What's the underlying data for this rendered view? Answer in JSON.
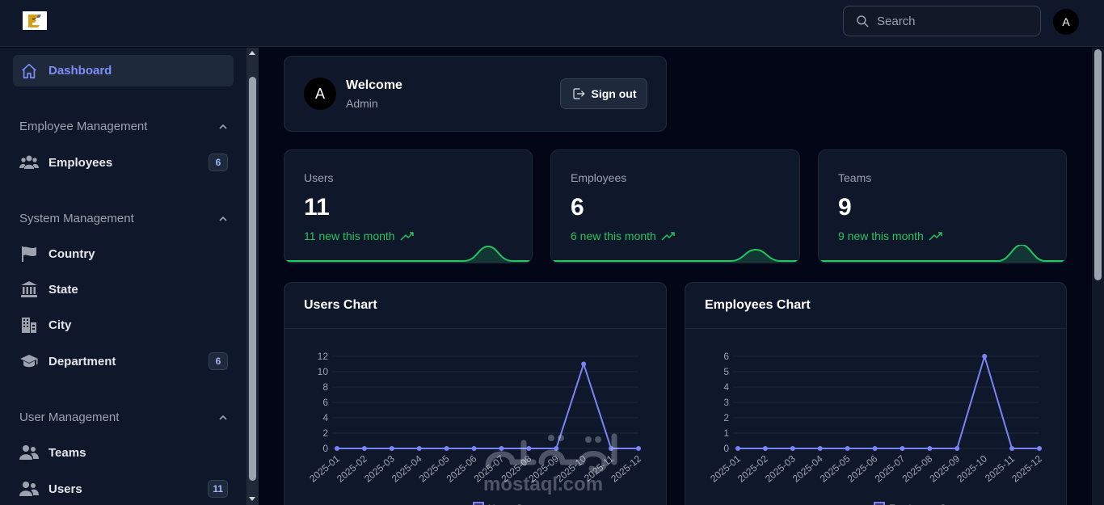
{
  "header": {
    "logo_letter": "E",
    "search": {
      "placeholder": "Search",
      "value": ""
    },
    "avatar": "A"
  },
  "sidebar": {
    "dashboard": {
      "label": "Dashboard",
      "icon": "home-icon"
    },
    "groups": [
      {
        "title": "Employee Management",
        "items": [
          {
            "label": "Employees",
            "icon": "users-group-icon",
            "badge": "6"
          }
        ]
      },
      {
        "title": "System Management",
        "items": [
          {
            "label": "Country",
            "icon": "flag-icon"
          },
          {
            "label": "State",
            "icon": "building-columns-icon"
          },
          {
            "label": "City",
            "icon": "city-icon"
          },
          {
            "label": "Department",
            "icon": "graduation-cap-icon",
            "badge": "6"
          }
        ]
      },
      {
        "title": "User Management",
        "items": [
          {
            "label": "Teams",
            "icon": "users-icon"
          },
          {
            "label": "Users",
            "icon": "users-icon",
            "badge": "11"
          }
        ]
      }
    ]
  },
  "welcome": {
    "avatar": "A",
    "title": "Welcome",
    "role": "Admin",
    "signout_label": "Sign out"
  },
  "stats": [
    {
      "label": "Users",
      "value": "11",
      "trend": "11 new this month"
    },
    {
      "label": "Employees",
      "value": "6",
      "trend": "6 new this month"
    },
    {
      "label": "Teams",
      "value": "9",
      "trend": "9 new this month"
    }
  ],
  "colors": {
    "accent": "#818cf8",
    "line": "#7c83f7",
    "success": "#22c55e",
    "background": "#020617",
    "card": "#0f172a"
  },
  "watermark": {
    "url": "mostaql.com"
  },
  "chart_data": [
    {
      "type": "line",
      "title": "Users Chart",
      "categories": [
        "2025-01",
        "2025-02",
        "2025-03",
        "2025-04",
        "2025-05",
        "2025-06",
        "2025-07",
        "2025-08",
        "2025-09",
        "2025-10",
        "2025-11",
        "2025-12"
      ],
      "series": [
        {
          "name": "Users Start",
          "values": [
            0,
            0,
            0,
            0,
            0,
            0,
            0,
            0,
            0,
            11,
            0,
            0
          ]
        }
      ],
      "yticks": [
        0,
        2,
        4,
        6,
        8,
        10,
        12
      ],
      "ylim": [
        0,
        12
      ],
      "grid": true,
      "legend": "bottom"
    },
    {
      "type": "line",
      "title": "Employees Chart",
      "categories": [
        "2025-01",
        "2025-02",
        "2025-03",
        "2025-04",
        "2025-05",
        "2025-06",
        "2025-07",
        "2025-08",
        "2025-09",
        "2025-10",
        "2025-11",
        "2025-12"
      ],
      "series": [
        {
          "name": "Employees Start",
          "values": [
            0,
            0,
            0,
            0,
            0,
            0,
            0,
            0,
            0,
            6,
            0,
            0
          ]
        }
      ],
      "yticks": [
        0,
        1,
        2,
        3,
        4,
        5,
        6
      ],
      "ylim": [
        0,
        6
      ],
      "grid": true,
      "legend": "bottom"
    }
  ]
}
